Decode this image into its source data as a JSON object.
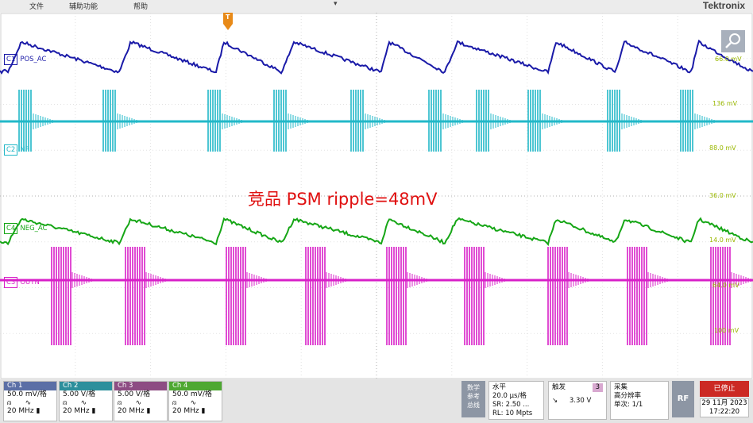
{
  "menu": {
    "file": "文件",
    "utility": "辅助功能",
    "help": "帮助"
  },
  "brand": "Tektronix",
  "trigger_marker": "T",
  "trigger_pos_marker": "▾",
  "annotation": "竞品 PSM ripple=48mV",
  "channels_on_screen": [
    {
      "id": "C1",
      "name": "POS_AC",
      "color": "#1a1aa8"
    },
    {
      "id": "C2",
      "name": "NP",
      "color": "#22b8c8"
    },
    {
      "id": "C4",
      "name": "NEG_AC",
      "color": "#16a616"
    },
    {
      "id": "C3",
      "name": "OUTN",
      "color": "#d820c8"
    }
  ],
  "scale_labels": {
    "c1": "66.0 mV",
    "c2_top": "136 mV",
    "c2_bottom": "88.0 mV",
    "c4_top": "36.0 mV",
    "c4_bottom": "14.0 mV",
    "c3_mid": "64.0 mV",
    "c3_bottom": "100 mV"
  },
  "bottom": {
    "ch1": {
      "head": "Ch 1",
      "scale": "50.0 mV/格",
      "bw": "20 MHz",
      "color": "#5b6fa6"
    },
    "ch2": {
      "head": "Ch 2",
      "scale": "5.00 V/格",
      "bw": "20 MHz",
      "color": "#2c8f9c"
    },
    "ch3": {
      "head": "Ch 3",
      "scale": "5.00 V/格",
      "bw": "20 MHz",
      "color": "#8d4c83"
    },
    "ch4": {
      "head": "Ch 4",
      "scale": "50.0 mV/格",
      "bw": "20 MHz",
      "color": "#4ea832"
    },
    "math": [
      "数学",
      "参考",
      "总线"
    ],
    "horizontal": {
      "title": "水平",
      "scale": "20.0 µs/格",
      "sr": "SR: 2.50 ...",
      "rl": "RL: 10 Mpts"
    },
    "trigger": {
      "title": "触发",
      "source": "3",
      "level": "3.30 V"
    },
    "acquire": {
      "title": "采集",
      "mode": "高分辨率",
      "count": "单次: 1/1"
    },
    "rf": "RF",
    "status": "已停止",
    "date": "29 11月 2023",
    "time": "17:22:20"
  }
}
